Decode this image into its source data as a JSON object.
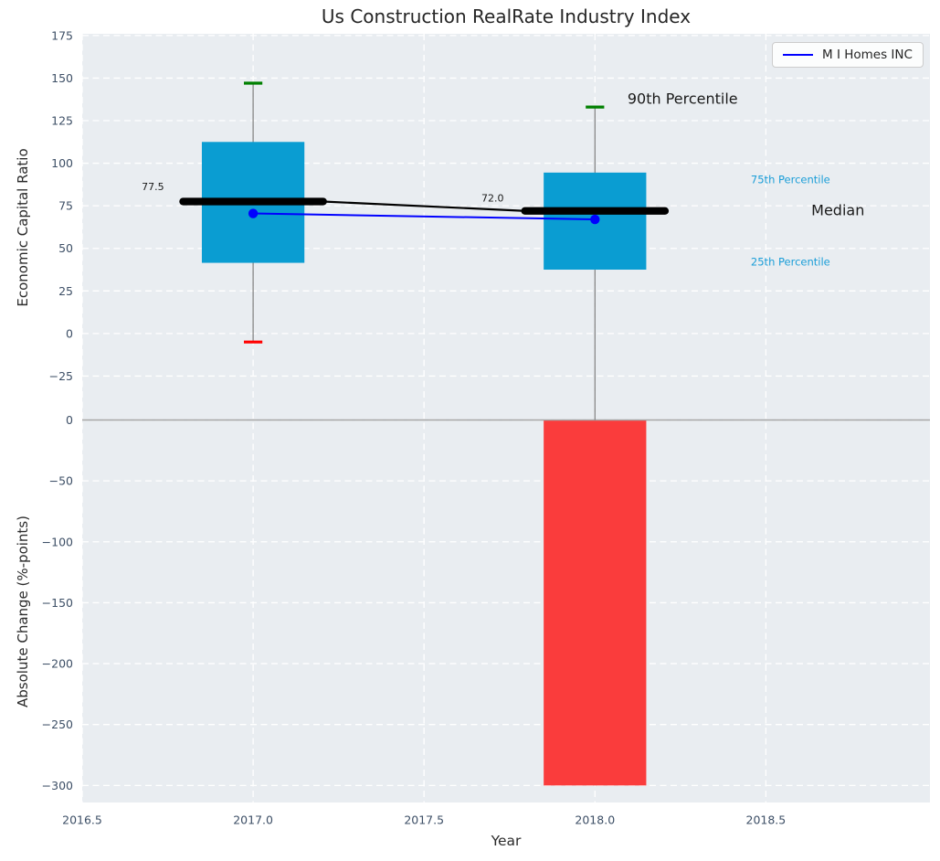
{
  "title": "Us Construction RealRate Industry Index",
  "legend": {
    "label": "M I Homes INC"
  },
  "colors": {
    "figure_bg": "#ffffff",
    "axes_bg": "#e9edf1",
    "grid": "#ffffff",
    "tick_label": "#3d4f66",
    "text_dark": "#1a1a1a",
    "box_fill": "#0a9dd2",
    "bar_fill": "#fa3c3c",
    "whisker": "#7d7d7d",
    "cap_high": "#008000",
    "cap_low": "#ff0000",
    "median_line": "#000000",
    "company_line": "#0000ff",
    "annotation_accent": "#1b9ed8",
    "panel_separator": "#a6a6a6"
  },
  "chart_data": [
    {
      "type": "box",
      "title": "Us Construction RealRate Industry Index",
      "ylabel": "Economic Capital Ratio",
      "ylim": [
        -50.8,
        176
      ],
      "yticks": [
        175,
        150,
        125,
        100,
        75,
        50,
        25,
        0,
        -25
      ],
      "xlim": [
        2016.5,
        2018.98
      ],
      "grid": "white dashed",
      "legend_position": "upper right",
      "groups": [
        {
          "year": 2017.0,
          "p90": 147,
          "p75": 112.5,
          "median": 77.5,
          "p25": 41.5,
          "p10": -5,
          "median_label": "77.5"
        },
        {
          "year": 2018.0,
          "p90": 133,
          "p75": 94.5,
          "median": 72.0,
          "p25": 37.5,
          "p10": null,
          "median_label": "72.0"
        }
      ],
      "box_half_width": 0.15,
      "median_half_width": 0.205,
      "cap_half_width": 0.027,
      "company_series": {
        "name": "M I Homes INC",
        "x": [
          2017.0,
          2018.0
        ],
        "y": [
          70.5,
          67.0
        ]
      },
      "annotations": [
        {
          "text": "77.5",
          "x": 2016.674,
          "y": 86,
          "size": 11,
          "color": "dark"
        },
        {
          "text": "72.0",
          "x": 2017.668,
          "y": 79.5,
          "size": 11,
          "color": "dark"
        },
        {
          "text": "90th Percentile",
          "x": 2018.095,
          "y": 138,
          "size": 16,
          "color": "dark"
        },
        {
          "text": "75th Percentile",
          "x": 2018.456,
          "y": 90.5,
          "size": 11.5,
          "color": "accent"
        },
        {
          "text": "Median",
          "x": 2018.633,
          "y": 72.5,
          "size": 16,
          "color": "dark"
        },
        {
          "text": "25th Percentile",
          "x": 2018.456,
          "y": 42,
          "size": 11.5,
          "color": "accent"
        }
      ]
    },
    {
      "type": "bar",
      "ylabel": "Absolute Change (%-points)",
      "ylim": [
        -314,
        0
      ],
      "yticks": [
        0,
        -50,
        -100,
        -150,
        -200,
        -250,
        -300
      ],
      "xlabel": "Year",
      "xlim": [
        2016.5,
        2018.98
      ],
      "xticks": [
        2016.5,
        2017.0,
        2017.5,
        2018.0,
        2018.5
      ],
      "xtick_labels": [
        "2016.5",
        "2017.0",
        "2017.5",
        "2018.0",
        "2018.5"
      ],
      "x": [
        2018.0
      ],
      "values": [
        -300
      ],
      "bar_width": 0.3
    }
  ]
}
